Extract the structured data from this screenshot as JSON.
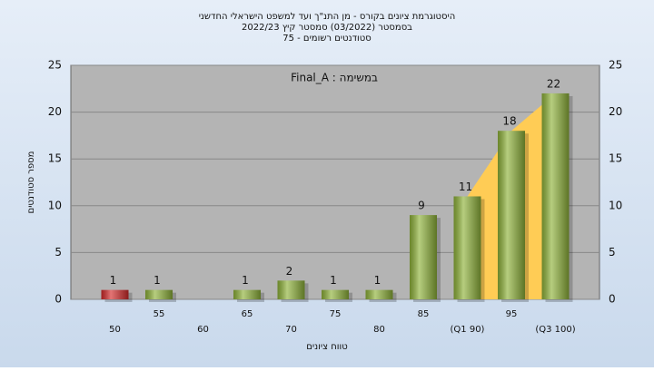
{
  "chart_data": {
    "type": "bar",
    "title": [
      "היסטוגרמת ציונים בקורס - מן התנ\"ך ועד למשפט הישראלי החדשני",
      "בסמסטר (03/2022) סמסטר קיץ 2022/23",
      "סטודנטים רשומים - 75"
    ],
    "annotation": "במשימה : Final_A",
    "x_label": "טווח ציונים",
    "y_label": "מספר סטודנטים",
    "categories": [
      "50",
      "55",
      "60",
      "65",
      "70",
      "75",
      "80",
      "85",
      "(Q1 90)",
      "95",
      "(Q3 100)"
    ],
    "values": [
      1,
      1,
      null,
      1,
      2,
      1,
      1,
      9,
      11,
      18,
      22
    ],
    "colors": [
      "#d42a2a",
      "#8fb33a",
      "#8fb33a",
      "#8fb33a",
      "#8fb33a",
      "#8fb33a",
      "#8fb33a",
      "#8fb33a",
      "#8fb33a",
      "#8fb33a",
      "#8fb33a"
    ],
    "highlight_color": "#ffcc55",
    "ylim": [
      0,
      25
    ],
    "yticks": [
      0,
      5,
      10,
      15,
      20,
      25
    ],
    "grid": true
  }
}
